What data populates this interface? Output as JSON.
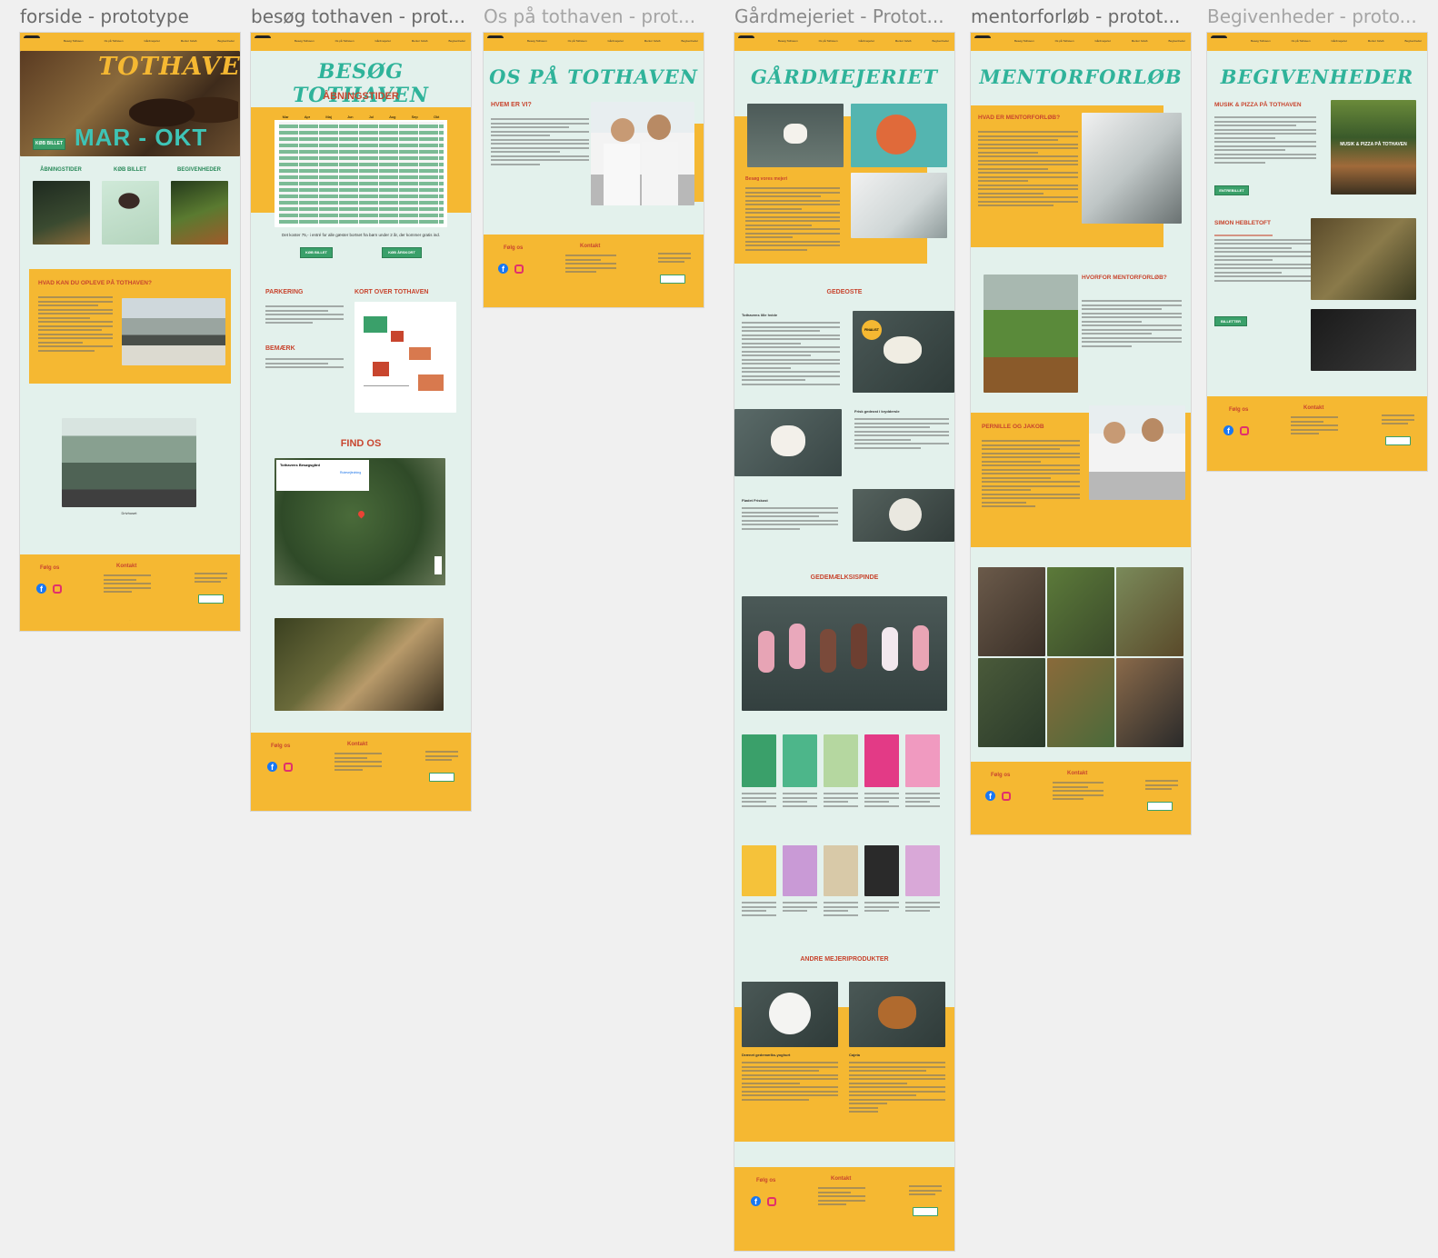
{
  "frames": [
    {
      "title": "forside - prototype"
    },
    {
      "title": "besøg tothaven - prot..."
    },
    {
      "title": "Os på tothaven - prot..."
    },
    {
      "title": "Gårdmejeriet - Protot..."
    },
    {
      "title": "mentorforløb - protot..."
    },
    {
      "title": "Begivenheder - proto..."
    }
  ],
  "nav": {
    "links": [
      "Besøg Tothaven",
      "Os på Tothaven",
      "Gårdmejeriet",
      "Mentor forløb",
      "Begivenheder"
    ]
  },
  "footer": {
    "follow": "Følg os",
    "contact": "Kontakt",
    "fb": "f"
  },
  "forside": {
    "hero_title": "TOTHAVEN",
    "hero_season": "MAR - OKT",
    "hero_button": "KØB BILLET",
    "cards": [
      "ÅBNINGSTIDER",
      "KØB BILLET",
      "BEGIVENHEDER"
    ],
    "section": "HVAD KAN DU OPLEVE PÅ TOTHAVEN?",
    "caption": "Drivhuset"
  },
  "besog": {
    "title": "BESØG TOTHAVEN",
    "hours": "ÅBNINGSTIDER",
    "months": [
      "Mar",
      "Apr",
      "Maj",
      "Jun",
      "Jul",
      "Aug",
      "Sep",
      "Okt"
    ],
    "price": "Det koster 75,- i entré for alle gæster bortset fra børn under 2 år, der kommer gratis ind.",
    "btn1": "KØB BILLET",
    "btn2": "KØB ÅRSKORT",
    "parking": "PARKERING",
    "map_title": "KORT OVER TOTHAVEN",
    "note": "BEMÆRK",
    "find": "FIND OS",
    "map_name": "Tothavens Besøgsgård",
    "map_route": "Rutevejledning"
  },
  "os": {
    "title": "OS PÅ TOTHAVEN",
    "who": "HVEM ER VI?"
  },
  "mejeri": {
    "title": "GÅRDMEJERIET",
    "visit": "Besøg vores mejeri",
    "gedeoste": "GEDEOSTE",
    "sub1": "Tothavens lille hvide",
    "sub2": "Frisk gedeost i kryddersle",
    "sub3": "Flødet Friskost",
    "is_title": "GEDEMÆLKSISPINDE",
    "andre": "ANDRE MEJERIPRODUKTER",
    "andre1": "Drænet gedemælks-yoghurt",
    "andre2": "Cajeta",
    "badge": "FINALIST"
  },
  "mentor": {
    "title": "MENTORFORLØB",
    "q1": "HVAD ER MENTORFORLØB?",
    "q2": "HVORFOR MENTORFORLØB?",
    "q3": "PERNILLE OG JAKOB"
  },
  "begiv": {
    "title": "BEGIVENHEDER",
    "e1": "MUSIK & PIZZA PÅ TOTHAVEN",
    "e1btn": "ENTREBILLET",
    "poster": "MUSIK & PIZZA PÅ TOTHAVEN",
    "e2": "SIMON HEBLETOFT",
    "e2btn": "BILLETTER"
  },
  "colors": {
    "mint": "#e3f1ec",
    "mustard": "#f5b832",
    "red": "#c8452e",
    "teal": "#2fb39a",
    "green": "#3aa06a"
  }
}
